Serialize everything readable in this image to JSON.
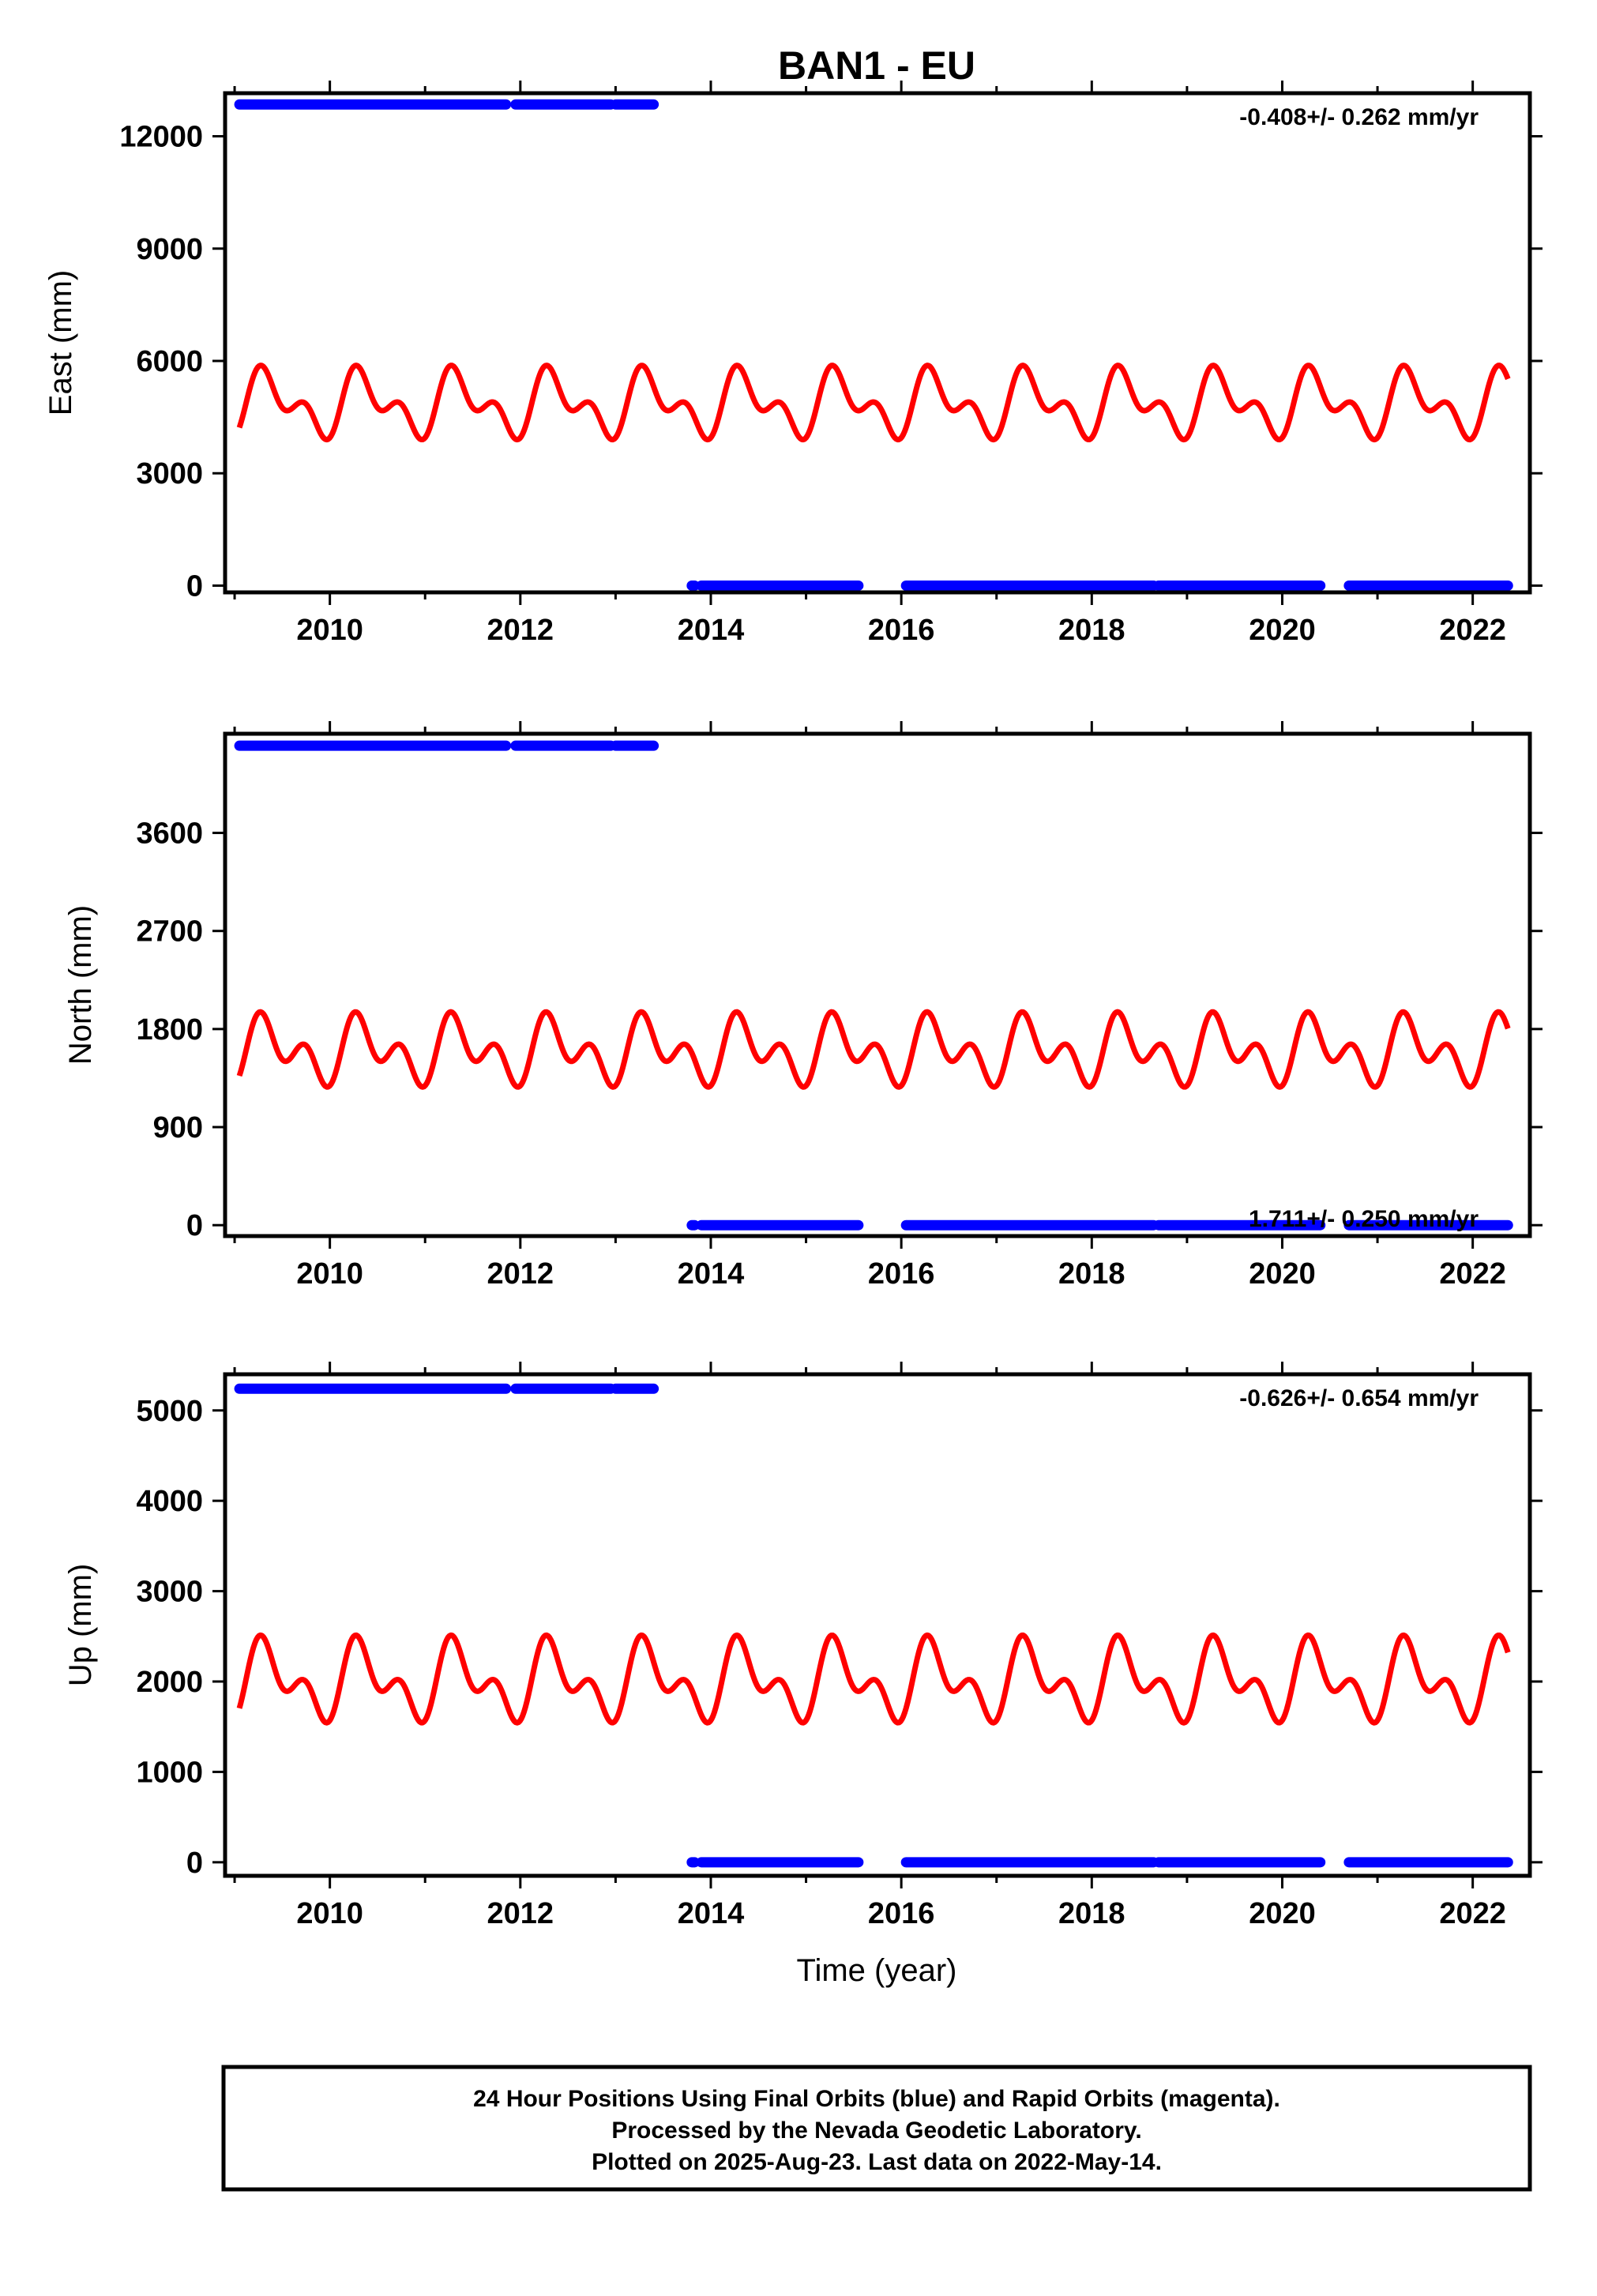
{
  "figure_title": "BAN1 - EU",
  "xlabel": "Time (year)",
  "footer_lines": [
    "24 Hour Positions Using Final Orbits (blue) and Rapid Orbits (magenta).",
    "Processed by the Nevada Geodetic Laboratory.",
    "Plotted on 2025-Aug-23. Last data on 2022-May-14."
  ],
  "colors": {
    "final_orbits": "#0000ff",
    "model_fit": "#ff0000",
    "frame": "#000000"
  },
  "chart_data": [
    {
      "type": "scatter",
      "name": "east",
      "ylabel": "East (mm)",
      "rate_text": "-0.408+/- 0.262 mm/yr",
      "rate_position": "top-right",
      "xlim": [
        2008.9,
        2022.6
      ],
      "ylim": [
        -180,
        13150
      ],
      "x_ticks": [
        2010,
        2012,
        2014,
        2016,
        2018,
        2020,
        2022
      ],
      "y_ticks": [
        0,
        3000,
        6000,
        9000,
        12000
      ],
      "grid": false,
      "series": [
        {
          "kind": "dots",
          "color": "#0000ff",
          "segments": [
            [
              2009.05,
              2011.85,
              12850
            ],
            [
              2011.95,
              2012.95,
              12850
            ],
            [
              2013.0,
              2013.4,
              12850
            ],
            [
              2013.8,
              2013.83,
              0
            ],
            [
              2013.9,
              2015.55,
              0
            ],
            [
              2016.05,
              2018.65,
              0
            ],
            [
              2018.7,
              2020.4,
              0
            ],
            [
              2020.7,
              2022.37,
              0
            ]
          ]
        },
        {
          "kind": "curve",
          "color": "#ff0000",
          "x_range": [
            2009.05,
            2022.37
          ],
          "model": {
            "offset": 4850,
            "annual_sin": 500,
            "annual_cos": -400,
            "semiannual_sin": 0,
            "semiannual_cos": -500
          }
        }
      ]
    },
    {
      "type": "scatter",
      "name": "north",
      "ylabel": "North (mm)",
      "rate_text": "1.711+/- 0.250 mm/yr",
      "rate_position": "bottom-right",
      "xlim": [
        2008.9,
        2022.6
      ],
      "ylim": [
        -100,
        4510
      ],
      "x_ticks": [
        2010,
        2012,
        2014,
        2016,
        2018,
        2020,
        2022
      ],
      "y_ticks": [
        0,
        900,
        1800,
        2700,
        3600
      ],
      "grid": false,
      "series": [
        {
          "kind": "dots",
          "color": "#0000ff",
          "segments": [
            [
              2009.05,
              2011.85,
              4400
            ],
            [
              2011.95,
              2012.95,
              4400
            ],
            [
              2013.0,
              2013.4,
              4400
            ],
            [
              2013.8,
              2013.83,
              0
            ],
            [
              2013.9,
              2015.55,
              0
            ],
            [
              2016.05,
              2018.65,
              0
            ],
            [
              2018.7,
              2020.4,
              0
            ],
            [
              2020.7,
              2022.37,
              0
            ]
          ]
        },
        {
          "kind": "curve",
          "color": "#ff0000",
          "x_range": [
            2009.05,
            2022.37
          ],
          "model": {
            "offset": 1600,
            "annual_sin": 150,
            "annual_cos": -120,
            "semiannual_sin": 0,
            "semiannual_cos": -200
          }
        }
      ]
    },
    {
      "type": "scatter",
      "name": "up",
      "ylabel": "Up (mm)",
      "rate_text": "-0.626+/- 0.654 mm/yr",
      "rate_position": "top-right",
      "xlim": [
        2008.9,
        2022.6
      ],
      "ylim": [
        -150,
        5400
      ],
      "x_ticks": [
        2010,
        2012,
        2014,
        2016,
        2018,
        2020,
        2022
      ],
      "y_ticks": [
        0,
        1000,
        2000,
        3000,
        4000,
        5000
      ],
      "grid": false,
      "series": [
        {
          "kind": "dots",
          "color": "#0000ff",
          "segments": [
            [
              2009.05,
              2011.85,
              5240
            ],
            [
              2011.95,
              2012.95,
              5240
            ],
            [
              2013.0,
              2013.4,
              5240
            ],
            [
              2013.8,
              2013.83,
              0
            ],
            [
              2013.9,
              2015.55,
              0
            ],
            [
              2016.05,
              2018.65,
              0
            ],
            [
              2018.7,
              2020.4,
              0
            ],
            [
              2020.7,
              2022.37,
              0
            ]
          ]
        },
        {
          "kind": "curve",
          "color": "#ff0000",
          "x_range": [
            2009.05,
            2022.37
          ],
          "model": {
            "offset": 2000,
            "annual_sin": 250,
            "annual_cos": -180,
            "semiannual_sin": 0,
            "semiannual_cos": -250
          }
        }
      ]
    }
  ]
}
